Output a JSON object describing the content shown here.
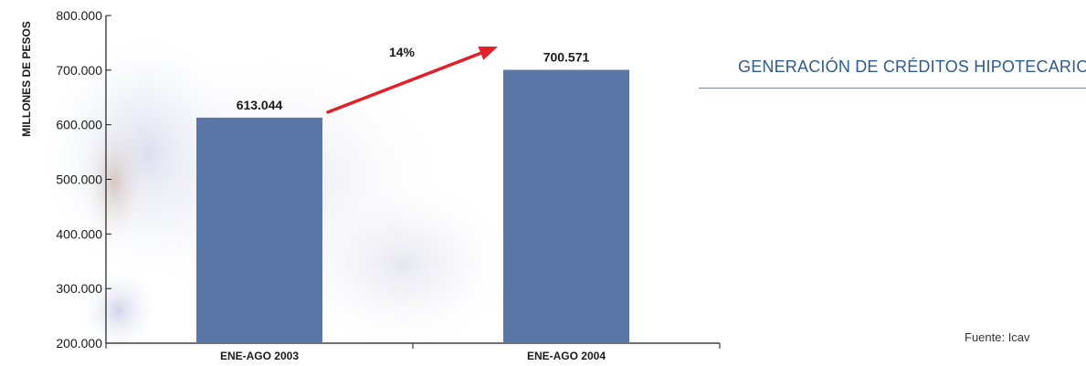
{
  "panel": {
    "title": "GENERACIÓN DE CRÉDITOS HIPOTECARIOS",
    "source": "Fuente: Icav"
  },
  "colors": {
    "bar": "#5a76a6",
    "arrow": "#e0202a",
    "title": "#2e5a8c",
    "rule": "#7a8496"
  },
  "chart_data": {
    "type": "bar",
    "title": "",
    "xlabel": "",
    "ylabel": "MILLONES DE PESOS",
    "categories": [
      "ENE-AGO 2003",
      "ENE-AGO 2004"
    ],
    "values": [
      613044,
      700571
    ],
    "data_labels": [
      "613.044",
      "700.571"
    ],
    "ylim": [
      200000,
      800000
    ],
    "yticks": [
      200000,
      300000,
      400000,
      500000,
      600000,
      700000,
      800000
    ],
    "ytick_labels": [
      "200.000",
      "300.000",
      "400.000",
      "500.000",
      "600.000",
      "700.000",
      "800.000"
    ],
    "grid": false,
    "annotations": [
      {
        "type": "arrow",
        "from": "ENE-AGO 2003",
        "to": "ENE-AGO 2004",
        "label": "14%"
      }
    ]
  }
}
